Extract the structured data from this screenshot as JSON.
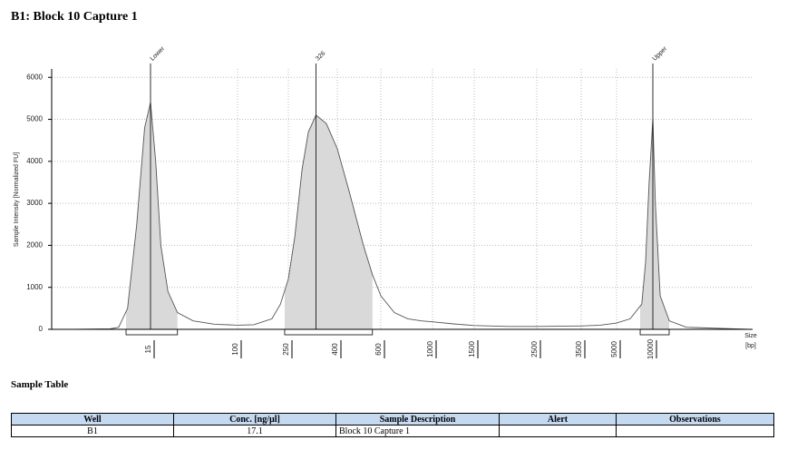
{
  "title": "B1: Block 10 Capture 1",
  "chart_data": {
    "type": "line",
    "ylabel": "Sample Intensity [Normalized FU]",
    "xlabel": "Size",
    "xunit": "[bp]",
    "ylim": [
      0,
      6200
    ],
    "yticks": [
      0,
      1000,
      2000,
      3000,
      4000,
      5000,
      6000
    ],
    "xticks": [
      15,
      100,
      250,
      400,
      600,
      1000,
      1500,
      2500,
      3500,
      5000,
      10000
    ],
    "grid": true,
    "color": "#555555",
    "fill": "#d9d9d9",
    "series": [
      {
        "name": "B1",
        "x": [
          2.9,
          6.2,
          7.5,
          9.1,
          11.1,
          13.2,
          15,
          16.8,
          18.8,
          21.9,
          27,
          38,
          61,
          100,
          134,
          186,
          217,
          250,
          266,
          285,
          303,
          326,
          360,
          400,
          446,
          510,
          555,
          600,
          686,
          784,
          897,
          1000,
          1225,
          1500,
          1980,
          2500,
          3500,
          4240,
          5000,
          6485,
          8100,
          8700,
          9320,
          10000,
          10500,
          11500,
          13700,
          19000,
          63000
        ],
        "values": [
          0,
          10,
          50,
          500,
          2500,
          4800,
          5400,
          4000,
          2000,
          900,
          400,
          200,
          120,
          100,
          110,
          250,
          600,
          1200,
          2200,
          3800,
          4700,
          5100,
          4900,
          4300,
          3300,
          2000,
          1300,
          800,
          400,
          250,
          200,
          180,
          130,
          90,
          70,
          70,
          80,
          100,
          150,
          250,
          600,
          1600,
          3500,
          5000,
          3000,
          800,
          200,
          50,
          0
        ]
      }
    ],
    "peaks": [
      {
        "label": "Lower",
        "x": 15,
        "from": 8.8,
        "to": 27
      },
      {
        "label": "326",
        "x": 326,
        "from": 234,
        "to": 555
      },
      {
        "label": "Upper",
        "x": 10000,
        "from": 7850,
        "to": 13660
      }
    ]
  },
  "sample_table": {
    "title": "Sample Table",
    "columns": [
      "Well",
      "Conc. [ng/µl]",
      "Sample Description",
      "Alert",
      "Observations"
    ],
    "rows": [
      [
        "B1",
        "17.1",
        "Block 10 Capture 1"
      ]
    ]
  }
}
